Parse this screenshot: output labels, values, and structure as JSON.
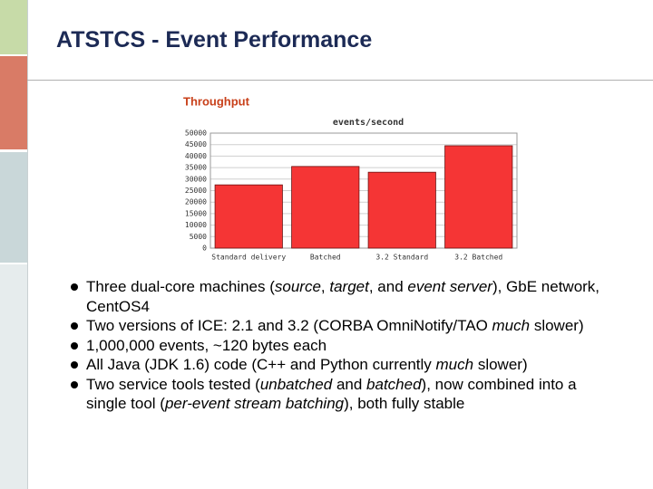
{
  "slide": {
    "title": "ATSTCS - Event Performance",
    "bullets": [
      [
        {
          "text": "Three dual-core machines ("
        },
        {
          "text": "source",
          "italic": true
        },
        {
          "text": ", "
        },
        {
          "text": "target",
          "italic": true
        },
        {
          "text": ", and "
        },
        {
          "text": "event server",
          "italic": true
        },
        {
          "text": "), GbE network, CentOS4"
        }
      ],
      [
        {
          "text": "Two versions of ICE: 2.1 and 3.2 (CORBA OmniNotify/TAO "
        },
        {
          "text": "much",
          "italic": true
        },
        {
          "text": " slower)"
        }
      ],
      [
        {
          "text": "1,000,000 events, ~120 bytes each"
        }
      ],
      [
        {
          "text": "All Java (JDK 1.6) code (C++ and Python currently "
        },
        {
          "text": "much",
          "italic": true
        },
        {
          "text": " slower)"
        }
      ],
      [
        {
          "text": "Two service tools tested ("
        },
        {
          "text": "unbatched",
          "italic": true
        },
        {
          "text": " and "
        },
        {
          "text": "batched",
          "italic": true
        },
        {
          "text": "), now combined into a single tool ("
        },
        {
          "text": "per-event stream batching",
          "italic": true
        },
        {
          "text": "), both fully stable"
        }
      ]
    ]
  },
  "chart_data": {
    "type": "bar",
    "title": "Throughput",
    "subtitle": "events/second",
    "categories": [
      "Standard delivery",
      "Batched",
      "3.2 Standard",
      "3.2 Batched"
    ],
    "values": [
      27500,
      35500,
      33000,
      44500
    ],
    "color": "#f53535",
    "ylim": [
      0,
      50000
    ],
    "yticks": [
      0,
      5000,
      10000,
      15000,
      20000,
      25000,
      30000,
      35000,
      40000,
      45000,
      50000
    ],
    "grid": true
  }
}
